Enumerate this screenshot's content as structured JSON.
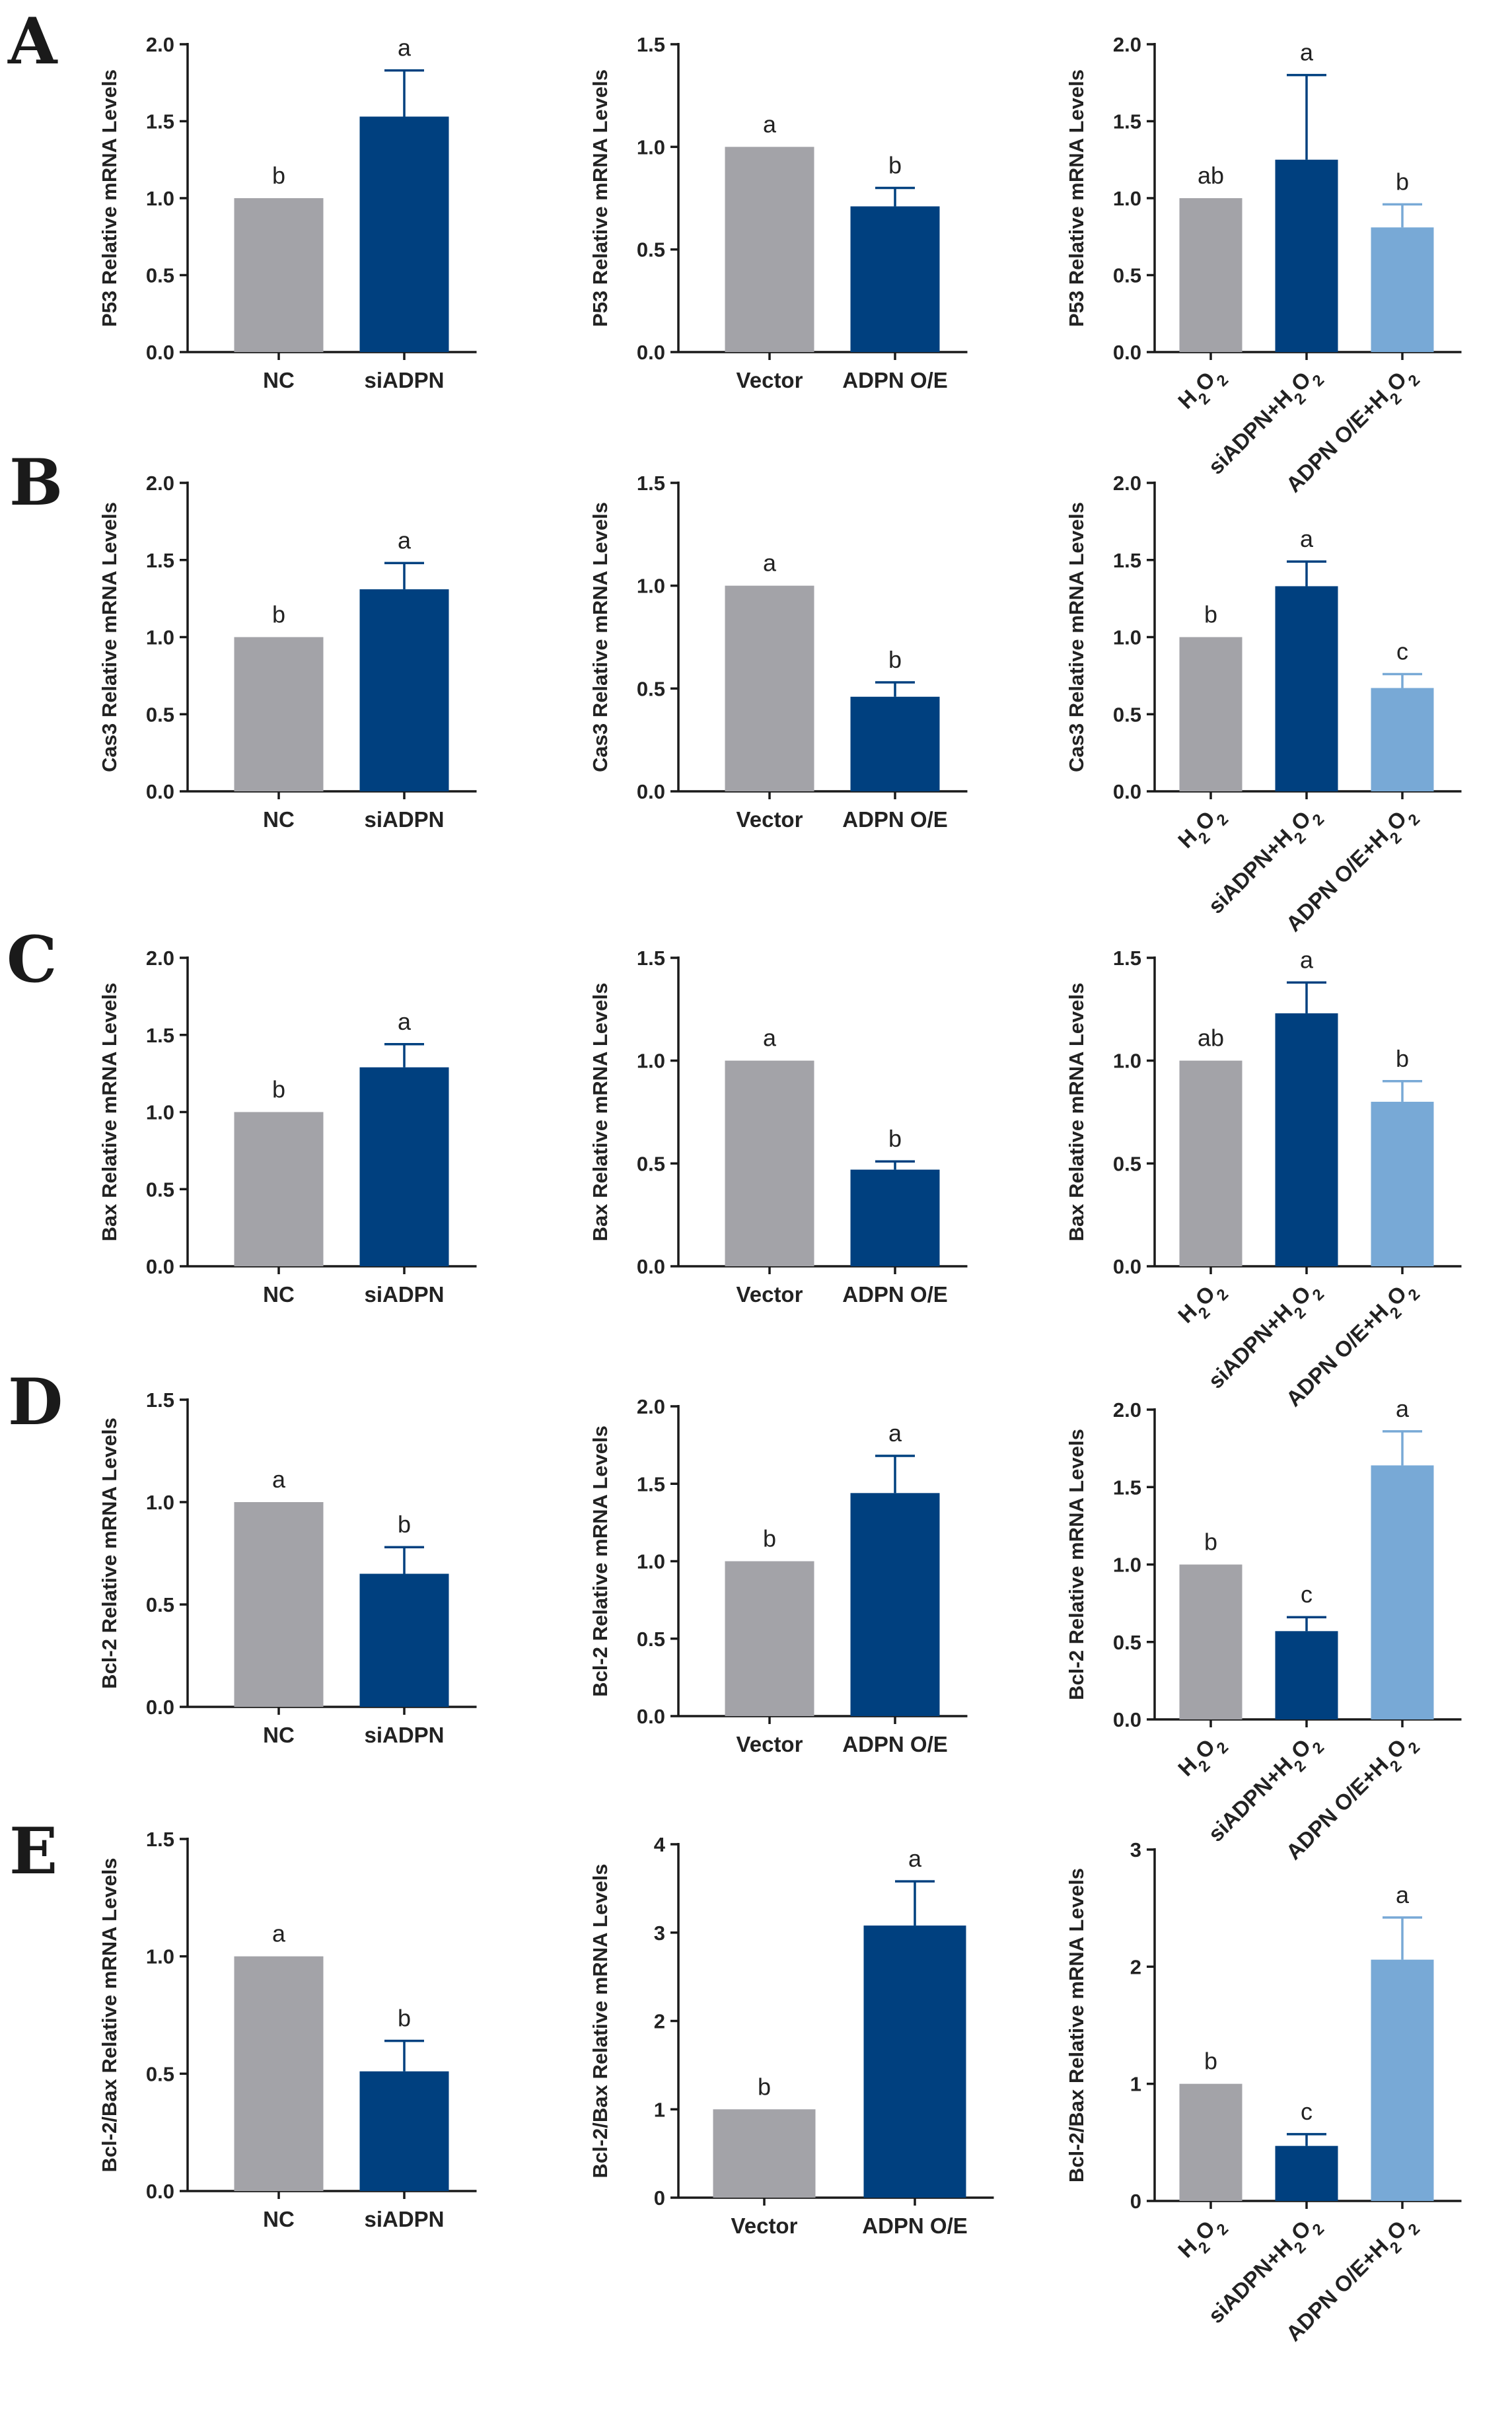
{
  "figure": {
    "colors": {
      "gray": "#a3a3a8",
      "navy": "#00407f",
      "light": "#78a9d6"
    },
    "panel_letters": [
      "A",
      "B",
      "C",
      "D",
      "E"
    ]
  },
  "chart_data": [
    {
      "id": "A1",
      "type": "bar",
      "ylabel": "P53 Relative mRNA Levels",
      "ylim": [
        0,
        2.0
      ],
      "yticks": [
        "0.0",
        "0.5",
        "1.0",
        "1.5",
        "2.0"
      ],
      "categories": [
        "NC",
        "siADPN"
      ],
      "values": [
        1.0,
        1.53
      ],
      "errors": [
        0,
        0.3
      ],
      "letters": [
        "b",
        "a"
      ],
      "colors": [
        "gray",
        "navy"
      ]
    },
    {
      "id": "A2",
      "type": "bar",
      "ylabel": "P53 Relative mRNA Levels",
      "ylim": [
        0,
        1.5
      ],
      "yticks": [
        "0.0",
        "0.5",
        "1.0",
        "1.5"
      ],
      "categories": [
        "Vector",
        "ADPN O/E"
      ],
      "values": [
        1.0,
        0.71
      ],
      "errors": [
        0,
        0.09
      ],
      "letters": [
        "a",
        "b"
      ],
      "colors": [
        "gray",
        "navy"
      ]
    },
    {
      "id": "A3",
      "type": "bar",
      "ylabel": "P53 Relative mRNA Levels",
      "ylim": [
        0,
        2.0
      ],
      "yticks": [
        "0.0",
        "0.5",
        "1.0",
        "1.5",
        "2.0"
      ],
      "categories": [
        "H2O2",
        "siADPN+H2O2",
        "ADPN O/E+H2O2"
      ],
      "values": [
        1.0,
        1.25,
        0.81
      ],
      "errors": [
        0,
        0.55,
        0.15
      ],
      "letters": [
        "ab",
        "a",
        "b"
      ],
      "colors": [
        "gray",
        "navy",
        "light"
      ]
    },
    {
      "id": "B1",
      "type": "bar",
      "ylabel": "Cas3 Relative mRNA Levels",
      "ylim": [
        0,
        2.0
      ],
      "yticks": [
        "0.0",
        "0.5",
        "1.0",
        "1.5",
        "2.0"
      ],
      "categories": [
        "NC",
        "siADPN"
      ],
      "values": [
        1.0,
        1.31
      ],
      "errors": [
        0,
        0.17
      ],
      "letters": [
        "b",
        "a"
      ],
      "colors": [
        "gray",
        "navy"
      ]
    },
    {
      "id": "B2",
      "type": "bar",
      "ylabel": "Cas3 Relative mRNA Levels",
      "ylim": [
        0,
        1.5
      ],
      "yticks": [
        "0.0",
        "0.5",
        "1.0",
        "1.5"
      ],
      "categories": [
        "Vector",
        "ADPN O/E"
      ],
      "values": [
        1.0,
        0.46
      ],
      "errors": [
        0,
        0.07
      ],
      "letters": [
        "a",
        "b"
      ],
      "colors": [
        "gray",
        "navy"
      ]
    },
    {
      "id": "B3",
      "type": "bar",
      "ylabel": "Cas3 Relative mRNA Levels",
      "ylim": [
        0,
        2.0
      ],
      "yticks": [
        "0.0",
        "0.5",
        "1.0",
        "1.5",
        "2.0"
      ],
      "categories": [
        "H2O2",
        "siADPN+H2O2",
        "ADPN O/E+H2O2"
      ],
      "values": [
        1.0,
        1.33,
        0.67
      ],
      "errors": [
        0,
        0.16,
        0.09
      ],
      "letters": [
        "b",
        "a",
        "c"
      ],
      "colors": [
        "gray",
        "navy",
        "light"
      ]
    },
    {
      "id": "C1",
      "type": "bar",
      "ylabel": "Bax Relative mRNA Levels",
      "ylim": [
        0,
        2.0
      ],
      "yticks": [
        "0.0",
        "0.5",
        "1.0",
        "1.5",
        "2.0"
      ],
      "categories": [
        "NC",
        "siADPN"
      ],
      "values": [
        1.0,
        1.29
      ],
      "errors": [
        0,
        0.15
      ],
      "letters": [
        "b",
        "a"
      ],
      "colors": [
        "gray",
        "navy"
      ]
    },
    {
      "id": "C2",
      "type": "bar",
      "ylabel": "Bax Relative mRNA Levels",
      "ylim": [
        0,
        1.5
      ],
      "yticks": [
        "0.0",
        "0.5",
        "1.0",
        "1.5"
      ],
      "categories": [
        "Vector",
        "ADPN O/E"
      ],
      "values": [
        1.0,
        0.47
      ],
      "errors": [
        0,
        0.04
      ],
      "letters": [
        "a",
        "b"
      ],
      "colors": [
        "gray",
        "navy"
      ]
    },
    {
      "id": "C3",
      "type": "bar",
      "ylabel": "Bax Relative mRNA Levels",
      "ylim": [
        0,
        1.5
      ],
      "yticks": [
        "0.0",
        "0.5",
        "1.0",
        "1.5"
      ],
      "categories": [
        "H2O2",
        "siADPN+H2O2",
        "ADPN O/E+H2O2"
      ],
      "values": [
        1.0,
        1.23,
        0.8
      ],
      "errors": [
        0,
        0.15,
        0.1
      ],
      "letters": [
        "ab",
        "a",
        "b"
      ],
      "colors": [
        "gray",
        "navy",
        "light"
      ]
    },
    {
      "id": "D1",
      "type": "bar",
      "ylabel": "Bcl-2 Relative mRNA Levels",
      "ylim": [
        0,
        1.5
      ],
      "yticks": [
        "0.0",
        "0.5",
        "1.0",
        "1.5"
      ],
      "categories": [
        "NC",
        "siADPN"
      ],
      "values": [
        1.0,
        0.65
      ],
      "errors": [
        0,
        0.13
      ],
      "letters": [
        "a",
        "b"
      ],
      "colors": [
        "gray",
        "navy"
      ]
    },
    {
      "id": "D2",
      "type": "bar",
      "ylabel": "Bcl-2 Relative mRNA Levels",
      "ylim": [
        0,
        2.0
      ],
      "yticks": [
        "0.0",
        "0.5",
        "1.0",
        "1.5",
        "2.0"
      ],
      "categories": [
        "Vector",
        "ADPN O/E"
      ],
      "values": [
        1.0,
        1.44
      ],
      "errors": [
        0,
        0.24
      ],
      "letters": [
        "b",
        "a"
      ],
      "colors": [
        "gray",
        "navy"
      ]
    },
    {
      "id": "D3",
      "type": "bar",
      "ylabel": "Bcl-2 Relative mRNA Levels",
      "ylim": [
        0,
        2.0
      ],
      "yticks": [
        "0.0",
        "0.5",
        "1.0",
        "1.5",
        "2.0"
      ],
      "categories": [
        "H2O2",
        "siADPN+H2O2",
        "ADPN O/E+H2O2"
      ],
      "values": [
        1.0,
        0.57,
        1.64
      ],
      "errors": [
        0,
        0.09,
        0.22
      ],
      "letters": [
        "b",
        "c",
        "a"
      ],
      "colors": [
        "gray",
        "navy",
        "light"
      ]
    },
    {
      "id": "E1",
      "type": "bar",
      "ylabel": "Bcl-2/Bax Relative mRNA Levels",
      "ylim": [
        0,
        1.5
      ],
      "yticks": [
        "0.0",
        "0.5",
        "1.0",
        "1.5"
      ],
      "categories": [
        "NC",
        "siADPN"
      ],
      "values": [
        1.0,
        0.51
      ],
      "errors": [
        0,
        0.13
      ],
      "letters": [
        "a",
        "b"
      ],
      "colors": [
        "gray",
        "navy"
      ]
    },
    {
      "id": "E2",
      "type": "bar",
      "ylabel": "Bcl-2/Bax Relative mRNA Levels",
      "ylim": [
        0,
        4
      ],
      "yticks": [
        "0",
        "1",
        "2",
        "3",
        "4"
      ],
      "categories": [
        "Vector",
        "ADPN O/E"
      ],
      "values": [
        1.0,
        3.08
      ],
      "errors": [
        0,
        0.5
      ],
      "letters": [
        "b",
        "a"
      ],
      "colors": [
        "gray",
        "navy"
      ]
    },
    {
      "id": "E3",
      "type": "bar",
      "ylabel": "Bcl-2/Bax Relative mRNA Levels",
      "ylim": [
        0,
        3
      ],
      "yticks": [
        "0",
        "1",
        "2",
        "3"
      ],
      "categories": [
        "H2O2",
        "siADPN+H2O2",
        "ADPN O/E+H2O2"
      ],
      "values": [
        1.0,
        0.47,
        2.06
      ],
      "errors": [
        0,
        0.1,
        0.36
      ],
      "letters": [
        "b",
        "c",
        "a"
      ],
      "colors": [
        "gray",
        "navy",
        "light"
      ]
    }
  ]
}
